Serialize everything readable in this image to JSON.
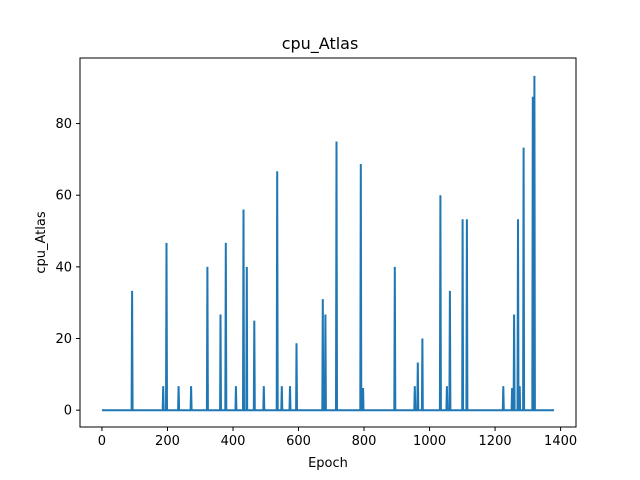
{
  "chart_data": {
    "type": "line",
    "title": "cpu_Atlas",
    "xlabel": "Epoch",
    "ylabel": "cpu_Atlas",
    "xlim": [
      -67,
      1447
    ],
    "ylim": [
      -4.7,
      98.3
    ],
    "x_ticks": [
      0,
      200,
      400,
      600,
      800,
      1000,
      1200,
      1400
    ],
    "y_ticks": [
      0,
      20,
      40,
      60,
      80
    ],
    "grid": false,
    "color": "#1f77b4",
    "x_range": [
      0,
      1380
    ],
    "baseline": 0,
    "spikes": [
      {
        "x": 92,
        "y": 33.3
      },
      {
        "x": 187,
        "y": 6.7
      },
      {
        "x": 197,
        "y": 46.7
      },
      {
        "x": 234,
        "y": 6.7
      },
      {
        "x": 272,
        "y": 6.7
      },
      {
        "x": 322,
        "y": 40
      },
      {
        "x": 362,
        "y": 26.7
      },
      {
        "x": 378,
        "y": 46.7
      },
      {
        "x": 409,
        "y": 6.7
      },
      {
        "x": 432,
        "y": 56
      },
      {
        "x": 442,
        "y": 40
      },
      {
        "x": 465,
        "y": 25
      },
      {
        "x": 494,
        "y": 6.7
      },
      {
        "x": 535,
        "y": 66.7
      },
      {
        "x": 549,
        "y": 6.7
      },
      {
        "x": 574,
        "y": 6.7
      },
      {
        "x": 594,
        "y": 18.7
      },
      {
        "x": 674,
        "y": 31
      },
      {
        "x": 682,
        "y": 26.7
      },
      {
        "x": 716,
        "y": 75
      },
      {
        "x": 790,
        "y": 68.7
      },
      {
        "x": 797,
        "y": 6.2
      },
      {
        "x": 894,
        "y": 40
      },
      {
        "x": 955,
        "y": 6.7
      },
      {
        "x": 964,
        "y": 13.3
      },
      {
        "x": 978,
        "y": 20
      },
      {
        "x": 1033,
        "y": 60
      },
      {
        "x": 1053,
        "y": 6.7
      },
      {
        "x": 1062,
        "y": 33.3
      },
      {
        "x": 1101,
        "y": 53.3
      },
      {
        "x": 1114,
        "y": 53.3
      },
      {
        "x": 1225,
        "y": 6.7
      },
      {
        "x": 1252,
        "y": 6.2
      },
      {
        "x": 1258,
        "y": 26.7
      },
      {
        "x": 1270,
        "y": 53.3
      },
      {
        "x": 1275,
        "y": 6.7
      },
      {
        "x": 1287,
        "y": 73.3
      },
      {
        "x": 1315,
        "y": 87.5
      },
      {
        "x": 1320,
        "y": 93.3
      }
    ]
  }
}
